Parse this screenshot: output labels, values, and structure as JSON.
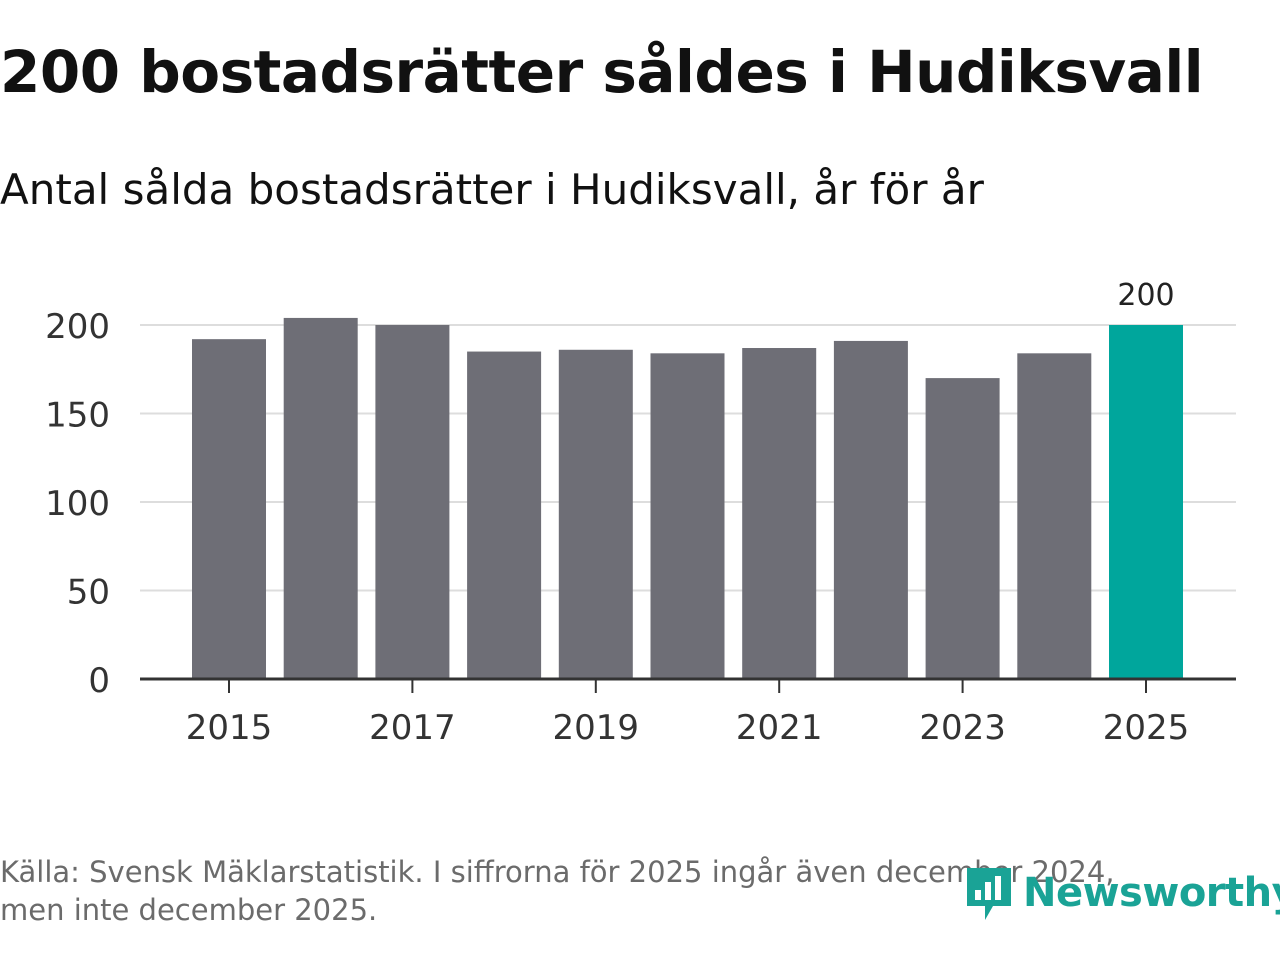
{
  "title": "200 bostadsrätter såldes i Hudiksvall",
  "subtitle": "Antal sålda bostadsrätter i Hudiksvall, år för år",
  "footer": {
    "line1": "Källa: Svensk Mäklarstatistik. I siffrorna för 2025 ingår även december 2024,",
    "line2": "men inte december 2025."
  },
  "brand": {
    "name": "Newsworthy",
    "icon": "newsworthy-logo-icon"
  },
  "colors": {
    "bar": "#6e6e76",
    "highlight": "#00a69c",
    "grid": "#dddddd",
    "axis": "#333333",
    "text": "#333333"
  },
  "chart_data": {
    "type": "bar",
    "title": "200 bostadsrätter såldes i Hudiksvall",
    "subtitle": "Antal sålda bostadsrätter i Hudiksvall, år för år",
    "categories": [
      2015,
      2016,
      2017,
      2018,
      2019,
      2020,
      2021,
      2022,
      2023,
      2024,
      2025
    ],
    "values": [
      192,
      204,
      200,
      185,
      186,
      184,
      187,
      191,
      170,
      184,
      200
    ],
    "highlight_index": 10,
    "data_labels": [
      {
        "index": 10,
        "text": "200"
      }
    ],
    "x_tick_labels": [
      "2015",
      "2017",
      "2019",
      "2021",
      "2023",
      "2025"
    ],
    "y_ticks": [
      0,
      50,
      100,
      150,
      200
    ],
    "y_tick_labels": [
      "0",
      "50",
      "100",
      "150",
      "200"
    ],
    "ylim": [
      0,
      200
    ],
    "xlabel": "",
    "ylabel": "",
    "grid": true,
    "legend": "none"
  }
}
